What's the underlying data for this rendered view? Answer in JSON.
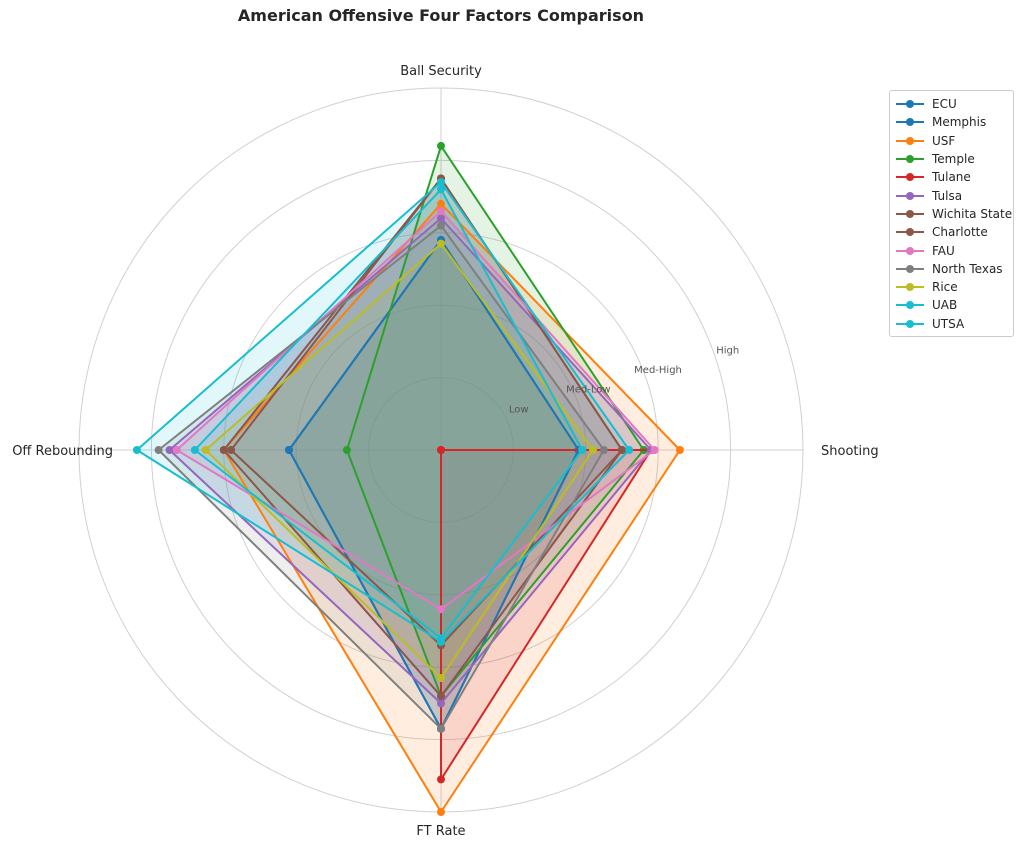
{
  "chart_data": {
    "type": "radar",
    "title": "American Offensive Four Factors Comparison",
    "axes": [
      "Ball Security",
      "Shooting",
      "FT Rate",
      "Off Rebounding"
    ],
    "radial_ticks": [
      {
        "value": 1,
        "label": "Low"
      },
      {
        "value": 2,
        "label": "Med-Low"
      },
      {
        "value": 3,
        "label": "Med-High"
      },
      {
        "value": 4,
        "label": "High"
      }
    ],
    "rlim": [
      0,
      5
    ],
    "grid": true,
    "legend_position": "top-right",
    "series": [
      {
        "name": "ECU",
        "color": "#1f77b4",
        "values": [
          2.9,
          1.9,
          3.85,
          2.1
        ]
      },
      {
        "name": "Memphis",
        "color": "#1f77b4",
        "values": [
          2.9,
          1.9,
          3.85,
          2.1
        ]
      },
      {
        "name": "USF",
        "color": "#ff7f0e",
        "values": [
          3.4,
          3.3,
          5.0,
          3.0
        ]
      },
      {
        "name": "Temple",
        "color": "#2ca02c",
        "values": [
          4.2,
          2.8,
          3.4,
          1.3
        ]
      },
      {
        "name": "Tulane",
        "color": "#d62728",
        "values": [
          0.0,
          2.9,
          4.55,
          0.0
        ]
      },
      {
        "name": "Tulsa",
        "color": "#9467bd",
        "values": [
          3.2,
          2.9,
          3.5,
          3.75
        ]
      },
      {
        "name": "Wichita State",
        "color": "#8c564b",
        "values": [
          3.75,
          2.5,
          3.4,
          3.0
        ]
      },
      {
        "name": "Charlotte",
        "color": "#8c564b",
        "values": [
          3.75,
          2.5,
          2.7,
          2.9
        ]
      },
      {
        "name": "FAU",
        "color": "#e377c2",
        "values": [
          3.3,
          2.95,
          2.2,
          3.65
        ]
      },
      {
        "name": "North Texas",
        "color": "#7f7f7f",
        "values": [
          3.1,
          2.25,
          3.85,
          3.9
        ]
      },
      {
        "name": "Rice",
        "color": "#bcbd22",
        "values": [
          2.85,
          2.1,
          3.15,
          3.25
        ]
      },
      {
        "name": "UAB",
        "color": "#17becf",
        "values": [
          3.6,
          1.95,
          2.6,
          3.4
        ]
      },
      {
        "name": "UTSA",
        "color": "#17becf",
        "values": [
          3.7,
          2.6,
          2.65,
          4.2
        ]
      }
    ]
  }
}
